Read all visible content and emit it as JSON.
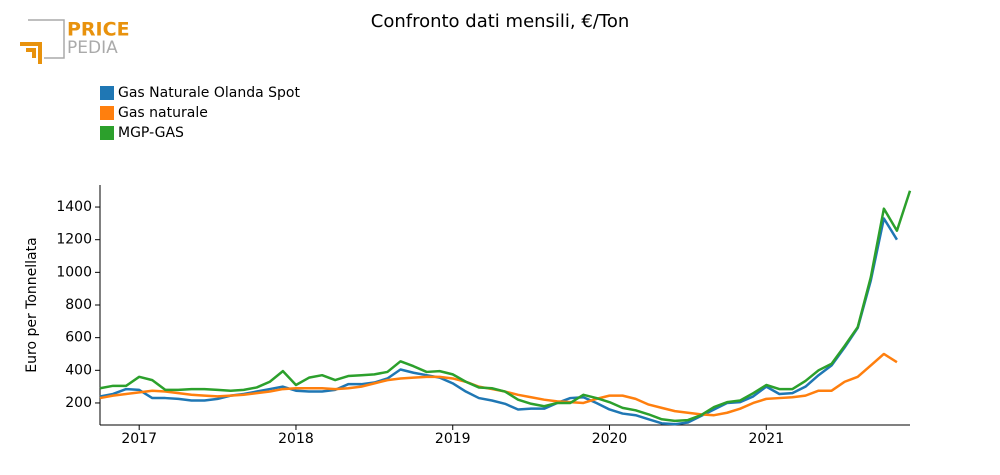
{
  "logo": {
    "top": "PRICE",
    "bottom": "PEDIA"
  },
  "chart_data": {
    "type": "line",
    "title": "Confronto dati mensili, €/Ton",
    "y_label": "Euro per Tonnellata",
    "x": [
      "2016-10",
      "2016-11",
      "2016-12",
      "2017-01",
      "2017-02",
      "2017-03",
      "2017-04",
      "2017-05",
      "2017-06",
      "2017-07",
      "2017-08",
      "2017-09",
      "2017-10",
      "2017-11",
      "2017-12",
      "2018-01",
      "2018-02",
      "2018-03",
      "2018-04",
      "2018-05",
      "2018-06",
      "2018-07",
      "2018-08",
      "2018-09",
      "2018-10",
      "2018-11",
      "2018-12",
      "2019-01",
      "2019-02",
      "2019-03",
      "2019-04",
      "2019-05",
      "2019-06",
      "2019-07",
      "2019-08",
      "2019-09",
      "2019-10",
      "2019-11",
      "2019-12",
      "2020-01",
      "2020-02",
      "2020-03",
      "2020-04",
      "2020-05",
      "2020-06",
      "2020-07",
      "2020-08",
      "2020-09",
      "2020-10",
      "2020-11",
      "2020-12",
      "2021-01",
      "2021-02",
      "2021-03",
      "2021-04",
      "2021-05",
      "2021-06",
      "2021-07",
      "2021-08",
      "2021-09",
      "2021-10",
      "2021-11",
      "2021-12"
    ],
    "series": [
      {
        "name": "Gas Naturale Olanda Spot",
        "color": "#1f77b4",
        "values": [
          240,
          255,
          285,
          280,
          230,
          230,
          225,
          215,
          215,
          225,
          245,
          255,
          270,
          285,
          300,
          275,
          270,
          270,
          280,
          315,
          315,
          325,
          350,
          405,
          385,
          370,
          355,
          320,
          270,
          230,
          215,
          195,
          160,
          165,
          165,
          200,
          230,
          235,
          200,
          160,
          135,
          125,
          100,
          75,
          70,
          80,
          120,
          160,
          200,
          205,
          240,
          300,
          255,
          260,
          300,
          370,
          430,
          540,
          660,
          950,
          1330,
          1200,
          null
        ]
      },
      {
        "name": "Gas naturale",
        "color": "#ff7f0e",
        "values": [
          230,
          245,
          255,
          265,
          275,
          270,
          260,
          250,
          245,
          240,
          245,
          250,
          260,
          270,
          285,
          290,
          290,
          290,
          285,
          290,
          300,
          320,
          340,
          350,
          355,
          360,
          360,
          350,
          330,
          300,
          285,
          270,
          250,
          235,
          220,
          210,
          205,
          200,
          225,
          245,
          245,
          225,
          190,
          170,
          150,
          140,
          130,
          125,
          140,
          165,
          200,
          225,
          230,
          235,
          245,
          275,
          275,
          330,
          360,
          430,
          500,
          450,
          null
        ]
      },
      {
        "name": "MGP-GAS",
        "color": "#2ca02c",
        "values": [
          290,
          305,
          305,
          360,
          340,
          280,
          280,
          285,
          285,
          280,
          275,
          280,
          295,
          330,
          395,
          310,
          355,
          370,
          340,
          365,
          370,
          375,
          390,
          455,
          425,
          390,
          395,
          375,
          330,
          295,
          290,
          270,
          220,
          195,
          180,
          200,
          200,
          250,
          230,
          205,
          170,
          155,
          130,
          100,
          90,
          95,
          125,
          175,
          205,
          215,
          260,
          310,
          285,
          285,
          335,
          400,
          440,
          550,
          665,
          970,
          1390,
          1255,
          1500
        ]
      }
    ],
    "xlim": [
      "2016-10",
      "2021-12"
    ],
    "xticks": [
      {
        "value": "2017-01",
        "label": "2017"
      },
      {
        "value": "2018-01",
        "label": "2018"
      },
      {
        "value": "2019-01",
        "label": "2019"
      },
      {
        "value": "2020-01",
        "label": "2020"
      },
      {
        "value": "2021-01",
        "label": "2021"
      }
    ],
    "ylim": [
      65,
      1535
    ],
    "yticks": [
      200,
      400,
      600,
      800,
      1000,
      1200,
      1400
    ],
    "legend": "top-left"
  }
}
